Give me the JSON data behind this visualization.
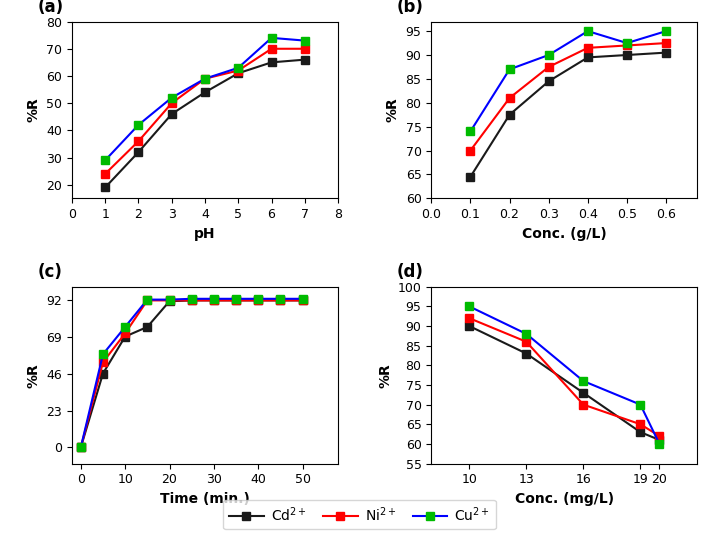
{
  "panel_a": {
    "xlabel": "pH",
    "ylabel": "%R",
    "xlim": [
      0,
      8
    ],
    "ylim": [
      15,
      80
    ],
    "yticks": [
      20,
      30,
      40,
      50,
      60,
      70,
      80
    ],
    "xticks": [
      0,
      1,
      2,
      3,
      4,
      5,
      6,
      7,
      8
    ],
    "Cd": {
      "x": [
        1,
        2,
        3,
        4,
        5,
        6,
        7
      ],
      "y": [
        19,
        32,
        46,
        54,
        61,
        65,
        66
      ]
    },
    "Ni": {
      "x": [
        1,
        2,
        3,
        4,
        5,
        6,
        7
      ],
      "y": [
        24,
        36,
        50,
        59,
        62,
        70,
        70
      ]
    },
    "Cu": {
      "x": [
        1,
        2,
        3,
        4,
        5,
        6,
        7
      ],
      "y": [
        29,
        42,
        52,
        59,
        63,
        74,
        73
      ]
    }
  },
  "panel_b": {
    "xlabel": "Conc. (g/L)",
    "ylabel": "%R",
    "xlim": [
      0.0,
      0.68
    ],
    "ylim": [
      60,
      97
    ],
    "yticks": [
      60,
      65,
      70,
      75,
      80,
      85,
      90,
      95
    ],
    "xticks": [
      0.0,
      0.1,
      0.2,
      0.3,
      0.4,
      0.5,
      0.6
    ],
    "Cd": {
      "x": [
        0.1,
        0.2,
        0.3,
        0.4,
        0.5,
        0.6
      ],
      "y": [
        64.5,
        77.5,
        84.5,
        89.5,
        90.0,
        90.5
      ]
    },
    "Ni": {
      "x": [
        0.1,
        0.2,
        0.3,
        0.4,
        0.5,
        0.6
      ],
      "y": [
        70,
        81,
        87.5,
        91.5,
        92.0,
        92.5
      ]
    },
    "Cu": {
      "x": [
        0.1,
        0.2,
        0.3,
        0.4,
        0.5,
        0.6
      ],
      "y": [
        74,
        87,
        90,
        95,
        92.5,
        95
      ]
    }
  },
  "panel_c": {
    "xlabel": "Time (min.)",
    "ylabel": "%R",
    "xlim": [
      -2,
      58
    ],
    "ylim": [
      -10,
      100
    ],
    "yticks": [
      0,
      23,
      46,
      69,
      92
    ],
    "xticks": [
      0,
      10,
      20,
      30,
      40,
      50
    ],
    "Cd": {
      "x": [
        0,
        5,
        10,
        15,
        20,
        25,
        30,
        35,
        40,
        45,
        50
      ],
      "y": [
        0,
        46,
        69,
        75,
        91,
        91.5,
        91.5,
        91.5,
        91.5,
        91.5,
        91.5
      ]
    },
    "Ni": {
      "x": [
        0,
        5,
        10,
        15,
        20,
        25,
        30,
        35,
        40,
        45,
        50
      ],
      "y": [
        0,
        53,
        71,
        91.5,
        91.5,
        91.5,
        91.5,
        91.5,
        91.5,
        91.5,
        91.5
      ]
    },
    "Cu": {
      "x": [
        0,
        5,
        10,
        15,
        20,
        25,
        30,
        35,
        40,
        45,
        50
      ],
      "y": [
        0,
        58,
        75,
        92,
        92,
        92.5,
        92.5,
        92.5,
        92.5,
        92.5,
        92.5
      ]
    }
  },
  "panel_d": {
    "xlabel": "Conc. (mg/L)",
    "ylabel": "%R",
    "xlim": [
      8,
      22
    ],
    "ylim": [
      55,
      100
    ],
    "yticks": [
      55,
      60,
      65,
      70,
      75,
      80,
      85,
      90,
      95,
      100
    ],
    "xticks": [
      10,
      13,
      16,
      19,
      20
    ],
    "Cd": {
      "x": [
        10,
        13,
        16,
        19,
        20
      ],
      "y": [
        90,
        83,
        73,
        63,
        61
      ]
    },
    "Ni": {
      "x": [
        10,
        13,
        16,
        19,
        20
      ],
      "y": [
        92,
        86,
        70,
        65,
        62
      ]
    },
    "Cu": {
      "x": [
        10,
        13,
        16,
        19,
        20
      ],
      "y": [
        95,
        88,
        76,
        70,
        60
      ]
    }
  },
  "line_colors": {
    "Cd": "#1a1a1a",
    "Ni": "#ff0000",
    "Cu": "#0000ff"
  },
  "marker_colors": {
    "Cd": "#1a1a1a",
    "Ni": "#ff0000",
    "Cu": "#00bb00"
  },
  "marker": "s",
  "markersize": 6,
  "linewidth": 1.5,
  "legend": {
    "Cd": "Cd$^{2+}$",
    "Ni": "Ni$^{2+}$",
    "Cu": "Cu$^{2+}$"
  },
  "label_fontsize": 10,
  "tick_fontsize": 9,
  "panel_label_fontsize": 12
}
